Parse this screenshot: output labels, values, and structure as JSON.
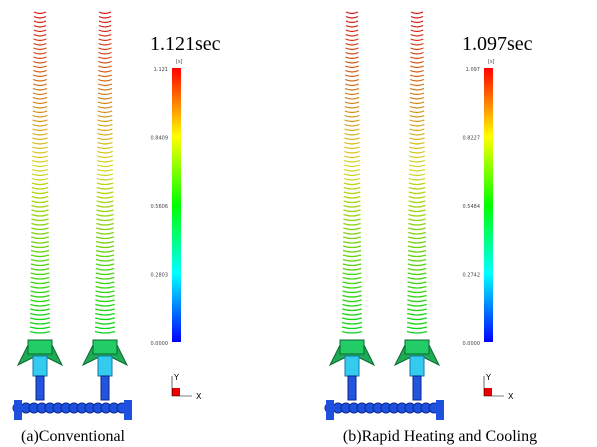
{
  "panels": [
    {
      "time": "1.121sec",
      "unit": "[s]",
      "scale": [
        "1.121",
        "0.8409",
        "0.5606",
        "0.2803",
        "0.0000"
      ],
      "axis_y": "Y",
      "axis_x": "X",
      "caption": "(a)Conventional"
    },
    {
      "time": "1.097sec",
      "unit": "[s]",
      "scale": [
        "1.097",
        "0.8227",
        "0.5484",
        "0.2742",
        "0.0000"
      ],
      "axis_y": "Y",
      "axis_x": "X",
      "caption": "(b)Rapid Heating and Cooling"
    }
  ]
}
